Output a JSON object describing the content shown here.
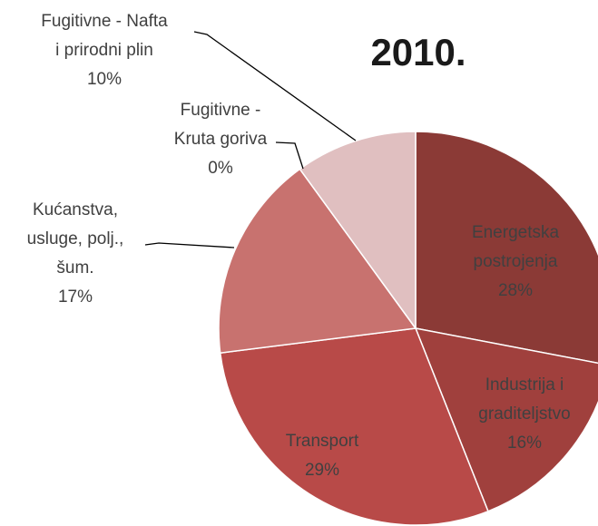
{
  "chart_data": {
    "type": "pie",
    "title": "2010.",
    "categories": [
      "Energetska postrojenja",
      "Industrija i graditeljstvo",
      "Transport",
      "Kućanstva, usluge, polj., šum.",
      "Fugitivne - Kruta goriva",
      "Fugitivne - Nafta i prirodni plin"
    ],
    "values": [
      28,
      16,
      29,
      17,
      0,
      10
    ],
    "value_labels": [
      "28%",
      "16%",
      "29%",
      "17%",
      "0%",
      "10%"
    ],
    "colors": [
      "#8b3a36",
      "#a0403d",
      "#b84a48",
      "#c8726f",
      "#d49895",
      "#e0bfc0"
    ]
  }
}
